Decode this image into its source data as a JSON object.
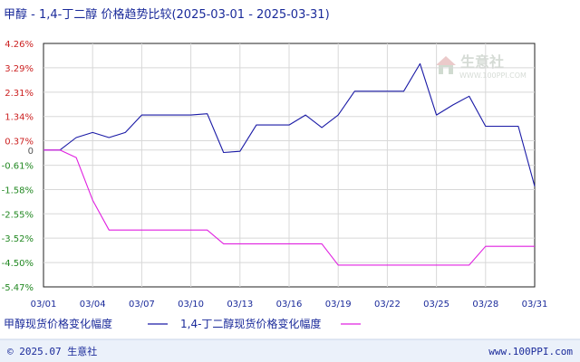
{
  "chart_data": {
    "type": "line",
    "title": "甲醇 - 1,4-丁二醇 价格趋势比较(2025-03-01 - 2025-03-31)",
    "x": [
      "03/01",
      "03/02",
      "03/03",
      "03/04",
      "03/05",
      "03/06",
      "03/07",
      "03/08",
      "03/09",
      "03/10",
      "03/11",
      "03/12",
      "03/13",
      "03/14",
      "03/15",
      "03/16",
      "03/17",
      "03/18",
      "03/19",
      "03/20",
      "03/21",
      "03/22",
      "03/23",
      "03/24",
      "03/25",
      "03/26",
      "03/27",
      "03/28",
      "03/29",
      "03/30",
      "03/31"
    ],
    "x_tick_labels": [
      "03/01",
      "03/04",
      "03/07",
      "03/10",
      "03/13",
      "03/16",
      "03/19",
      "03/22",
      "03/25",
      "03/28",
      "03/31"
    ],
    "y_tick_labels": [
      "4.26%",
      "3.29%",
      "2.31%",
      "1.34%",
      "0.37%",
      "0",
      "-0.61%",
      "-1.58%",
      "-2.55%",
      "-3.52%",
      "-4.50%",
      "-5.47%"
    ],
    "y_tick_values": [
      4.26,
      3.29,
      2.31,
      1.34,
      0.37,
      0,
      -0.61,
      -1.58,
      -2.55,
      -3.52,
      -4.5,
      -5.47
    ],
    "ylim": [
      -5.47,
      4.26
    ],
    "grid": true,
    "legend_placement": "bottom",
    "series": [
      {
        "name": "甲醇现货价格变化幅度",
        "color": "#1a1aa6",
        "values": [
          0,
          0,
          0.5,
          0.7,
          0.5,
          0.7,
          1.4,
          1.4,
          1.4,
          1.4,
          1.45,
          -0.1,
          -0.05,
          1.0,
          1.0,
          1.0,
          1.4,
          0.9,
          1.4,
          2.35,
          2.35,
          2.35,
          2.35,
          3.45,
          1.4,
          1.8,
          2.15,
          0.95,
          0.95,
          0.95,
          -1.45
        ]
      },
      {
        "name": "1,4-丁二醇现货价格变化幅度",
        "color": "#e020e0",
        "values": [
          0,
          0,
          -0.3,
          -2.0,
          -3.2,
          -3.2,
          -3.2,
          -3.2,
          -3.2,
          -3.2,
          -3.2,
          -3.75,
          -3.75,
          -3.75,
          -3.75,
          -3.75,
          -3.75,
          -3.75,
          -4.6,
          -4.6,
          -4.6,
          -4.6,
          -4.6,
          -4.6,
          -4.6,
          -4.6,
          -4.6,
          -3.85,
          -3.85,
          -3.85,
          -3.85
        ]
      }
    ]
  },
  "watermark": {
    "brand": "生意社",
    "url": "WWW.100PPI.COM"
  },
  "footer": {
    "left": "© 2025.07 生意社",
    "right": "www.100PPI.com"
  },
  "colors": {
    "title": "#1a2a9a",
    "positive_tick": "#cc2222",
    "negative_tick": "#228822",
    "zero_tick": "#555555",
    "x_tick": "#1a2a9a",
    "grid": "#d8d8d8",
    "footer_bg": "#ebf1fa"
  }
}
